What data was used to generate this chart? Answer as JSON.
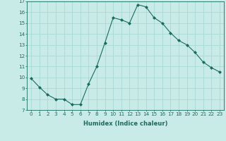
{
  "x": [
    0,
    1,
    2,
    3,
    4,
    5,
    6,
    7,
    8,
    9,
    10,
    11,
    12,
    13,
    14,
    15,
    16,
    17,
    18,
    19,
    20,
    21,
    22,
    23
  ],
  "y": [
    9.9,
    9.1,
    8.4,
    8.0,
    8.0,
    7.5,
    7.5,
    9.4,
    11.0,
    13.2,
    15.5,
    15.3,
    15.0,
    16.7,
    16.5,
    15.5,
    15.0,
    14.1,
    13.4,
    13.0,
    12.3,
    11.4,
    10.9,
    10.5
  ],
  "line_color": "#1a6b5e",
  "marker": "D",
  "marker_size": 2.0,
  "bg_color": "#c8ebe8",
  "grid_color": "#a8d8d2",
  "xlabel": "Humidex (Indice chaleur)",
  "ylim": [
    7,
    17
  ],
  "xlim_min": -0.5,
  "xlim_max": 23.5,
  "yticks": [
    7,
    8,
    9,
    10,
    11,
    12,
    13,
    14,
    15,
    16,
    17
  ],
  "xticks": [
    0,
    1,
    2,
    3,
    4,
    5,
    6,
    7,
    8,
    9,
    10,
    11,
    12,
    13,
    14,
    15,
    16,
    17,
    18,
    19,
    20,
    21,
    22,
    23
  ],
  "tick_fontsize": 5.2,
  "xlabel_fontsize": 6.0
}
